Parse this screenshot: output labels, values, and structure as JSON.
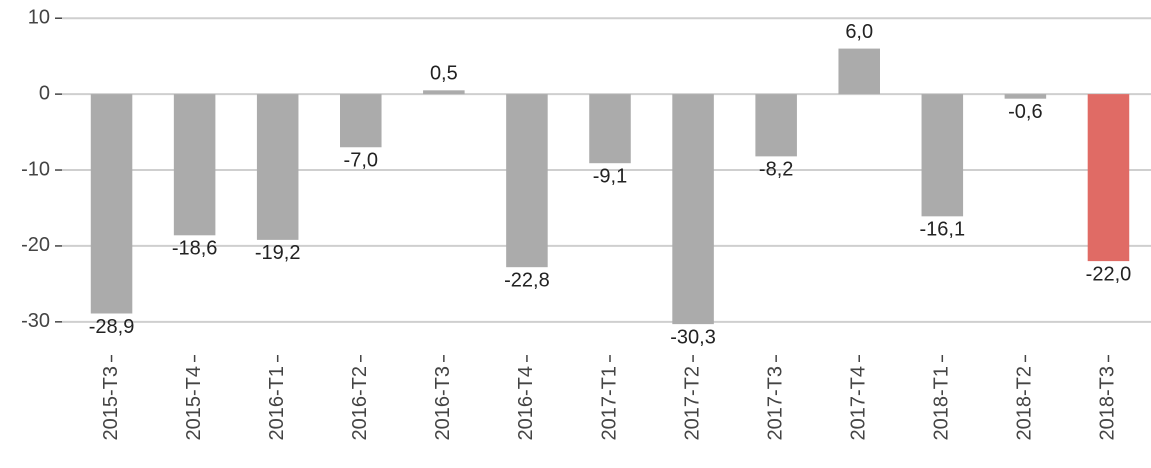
{
  "chart_data": {
    "type": "bar",
    "categories": [
      "2015-T3",
      "2015-T4",
      "2016-T1",
      "2016-T2",
      "2016-T3",
      "2016-T4",
      "2017-T1",
      "2017-T2",
      "2017-T3",
      "2017-T4",
      "2018-T1",
      "2018-T2",
      "2018-T3"
    ],
    "values": [
      -28.9,
      -18.6,
      -19.2,
      -7.0,
      0.5,
      -22.8,
      -9.1,
      -30.3,
      -8.2,
      6.0,
      -16.1,
      -0.6,
      -22.0
    ],
    "value_labels": [
      "-28,9",
      "-18,6",
      "-19,2",
      "-7,0",
      "0,5",
      "-22,8",
      "-9,1",
      "-30,3",
      "-8,2",
      "6,0",
      "-16,1",
      "-0,6",
      "-22,0"
    ],
    "colors": [
      "#ababab",
      "#ababab",
      "#ababab",
      "#ababab",
      "#ababab",
      "#ababab",
      "#ababab",
      "#ababab",
      "#ababab",
      "#ababab",
      "#ababab",
      "#ababab",
      "#e06b65"
    ],
    "ylim": [
      -34.5,
      12.4
    ],
    "yticks": [
      10,
      0,
      -10,
      -20,
      -30
    ],
    "grid": true
  }
}
